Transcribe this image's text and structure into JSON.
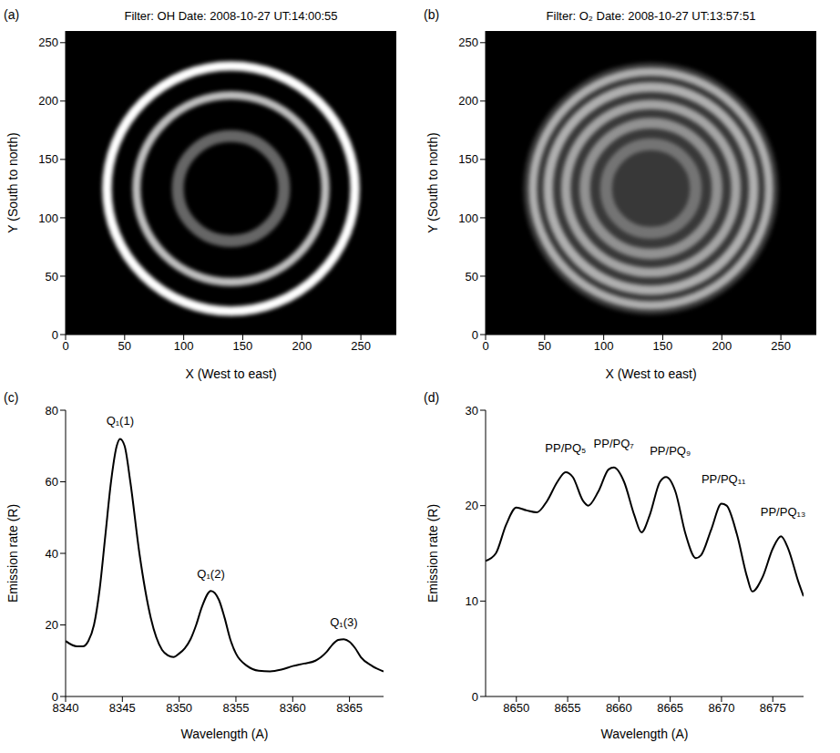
{
  "chart_data": [
    {
      "type": "image",
      "panel": "(a)",
      "title": "Filter: OH Date: 2008-10-27 UT:14:00:55",
      "x_label": "X (West to east)",
      "y_label": "Y (South to north)",
      "xlim": [
        0,
        280
      ],
      "ylim": [
        0,
        260
      ],
      "xticks": [
        0,
        50,
        100,
        150,
        200,
        250
      ],
      "yticks": [
        0,
        50,
        100,
        150,
        200,
        250
      ],
      "center": [
        140,
        125
      ],
      "rings": [
        {
          "radius": 45,
          "width": 10,
          "intensity": 0.4
        },
        {
          "radius": 80,
          "width": 7,
          "intensity": 0.75
        },
        {
          "radius": 105,
          "width": 8,
          "intensity": 1
        }
      ]
    },
    {
      "type": "image",
      "panel": "(b)",
      "title": "Filter: O₂ Date: 2008-10-27 UT:13:57:51",
      "x_label": "X (West to east)",
      "y_label": "Y (South to north)",
      "xlim": [
        0,
        280
      ],
      "ylim": [
        0,
        260
      ],
      "xticks": [
        0,
        50,
        100,
        150,
        200,
        250
      ],
      "yticks": [
        0,
        50,
        100,
        150,
        200,
        250
      ],
      "center": [
        140,
        125
      ],
      "disk": {
        "radius": 108,
        "intensity": 0.22
      },
      "rings": [
        {
          "radius": 38,
          "width": 10,
          "intensity": 0.3
        },
        {
          "radius": 56,
          "width": 9,
          "intensity": 0.45
        },
        {
          "radius": 72,
          "width": 8,
          "intensity": 0.55
        },
        {
          "radius": 87,
          "width": 8,
          "intensity": 0.6
        },
        {
          "radius": 100,
          "width": 7,
          "intensity": 0.6
        }
      ]
    },
    {
      "type": "line",
      "panel": "(c)",
      "x_label": "Wavelength (A)",
      "y_label": "Emission rate (R)",
      "xlim": [
        8340,
        8368
      ],
      "ylim": [
        0,
        80
      ],
      "xticks": [
        8340,
        8345,
        8350,
        8355,
        8360,
        8365
      ],
      "yticks": [
        0,
        20,
        40,
        60,
        80
      ],
      "color": "#000000",
      "x": [
        8340,
        8341,
        8341.5,
        8342,
        8342.5,
        8343,
        8343.5,
        8344,
        8344.5,
        8344.8,
        8345.2,
        8345.7,
        8346.5,
        8347.5,
        8348.5,
        8349,
        8349.5,
        8350,
        8350.5,
        8351,
        8351.5,
        8352,
        8352.8,
        8353.5,
        8354,
        8354.5,
        8355,
        8356,
        8357,
        8358,
        8359,
        8360,
        8361,
        8362,
        8362.5,
        8363,
        8363.5,
        8364,
        8364.5,
        8365,
        8365.5,
        8366,
        8367,
        8368
      ],
      "values": [
        15.5,
        14,
        14,
        15.5,
        20,
        30,
        45,
        60,
        70,
        72,
        70,
        60,
        40,
        22,
        13,
        11.5,
        11,
        12,
        13.5,
        16,
        20,
        25,
        29.5,
        27,
        22,
        16,
        12,
        8.5,
        7.2,
        7,
        7.5,
        8.5,
        9.2,
        10,
        11,
        12.5,
        14.5,
        15.8,
        16,
        15.3,
        13.5,
        11,
        8.5,
        7
      ],
      "annotations": [
        {
          "text": "Q₁(1)",
          "x": 8344.8,
          "y": 76
        },
        {
          "text": "Q₁(2)",
          "x": 8352.8,
          "y": 33
        },
        {
          "text": "Q₁(3)",
          "x": 8364.5,
          "y": 19.5
        }
      ]
    },
    {
      "type": "line",
      "panel": "(d)",
      "x_label": "Wavelength (A)",
      "y_label": "Emission rate (R)",
      "xlim": [
        8647,
        8678
      ],
      "ylim": [
        0,
        30
      ],
      "xticks": [
        8650,
        8655,
        8660,
        8665,
        8670,
        8675
      ],
      "yticks": [
        0,
        10,
        20,
        30
      ],
      "color": "#000000",
      "x": [
        8647,
        8648,
        8649,
        8650,
        8651,
        8652,
        8653,
        8654,
        8654.8,
        8655.5,
        8656.5,
        8657,
        8658,
        8659,
        8659.5,
        8660.5,
        8661.5,
        8662.2,
        8663,
        8664,
        8664.6,
        8665.5,
        8666.5,
        8667.5,
        8668,
        8669,
        8670,
        8670.5,
        8671.5,
        8672.5,
        8673,
        8674,
        8675,
        8675.8,
        8676.5,
        8677.5,
        8678
      ],
      "values": [
        14.2,
        15,
        18,
        19.8,
        19.5,
        19.3,
        20.5,
        22.5,
        23.5,
        23,
        20.5,
        20,
        21.5,
        23.8,
        24,
        22.5,
        19,
        17.2,
        19,
        22.5,
        23,
        21.5,
        17,
        14.5,
        14.8,
        17.5,
        20.2,
        20,
        17,
        12.5,
        11,
        12.5,
        15.5,
        16.8,
        15.5,
        12,
        10.5
      ],
      "annotations": [
        {
          "text": "PP/PQ₅",
          "x": 8654.8,
          "y": 25.6
        },
        {
          "text": "PP/PQ₇",
          "x": 8659.5,
          "y": 26.1
        },
        {
          "text": "PP/PQ₉",
          "x": 8665,
          "y": 25.3
        },
        {
          "text": "PP/PQ₁₁",
          "x": 8670.2,
          "y": 22.4
        },
        {
          "text": "PP/PQ₁₃",
          "x": 8676,
          "y": 18.9
        }
      ]
    }
  ]
}
